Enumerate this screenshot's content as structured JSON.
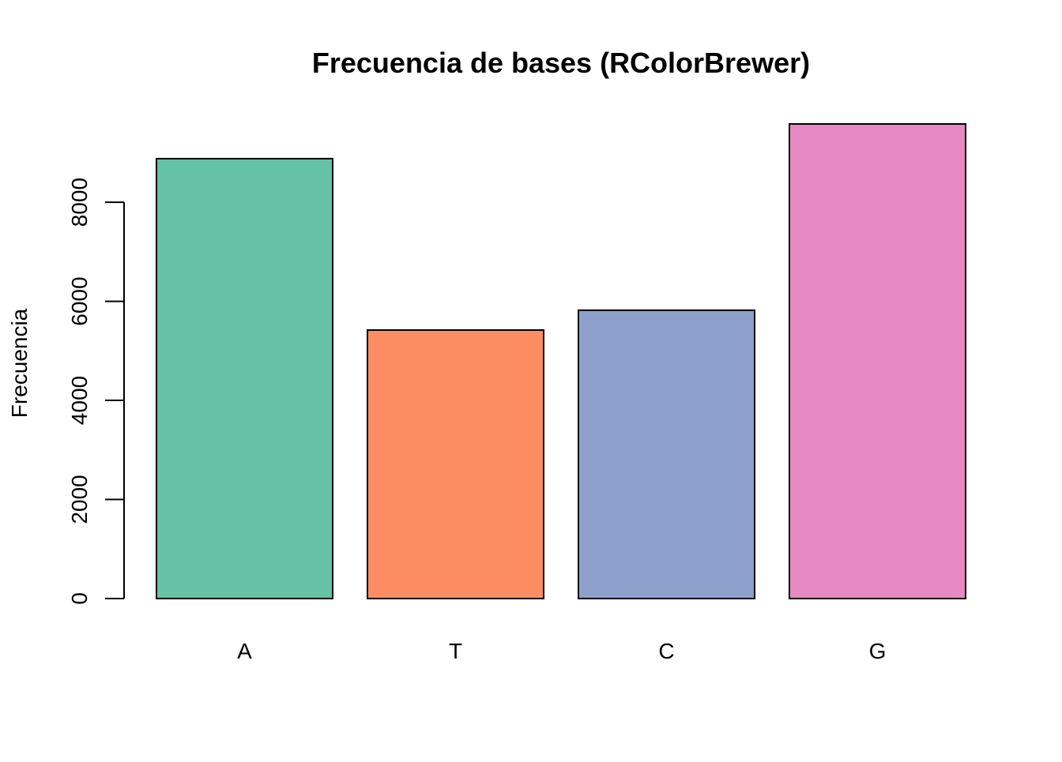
{
  "chart_data": {
    "type": "bar",
    "title": "Frecuencia de bases (RColorBrewer)",
    "xlabel": "",
    "ylabel": "Frecuencia",
    "categories": [
      "A",
      "T",
      "C",
      "G"
    ],
    "values": [
      8880,
      5420,
      5820,
      9580
    ],
    "colors": [
      "#66C2A5",
      "#FC8D62",
      "#8DA0CB",
      "#E78AC3"
    ],
    "ylim": [
      0,
      9580
    ],
    "yticks": [
      0,
      2000,
      4000,
      6000,
      8000
    ],
    "ytick_labels": [
      "0",
      "2000",
      "4000",
      "6000",
      "8000"
    ],
    "grid": false,
    "legend": "none"
  }
}
